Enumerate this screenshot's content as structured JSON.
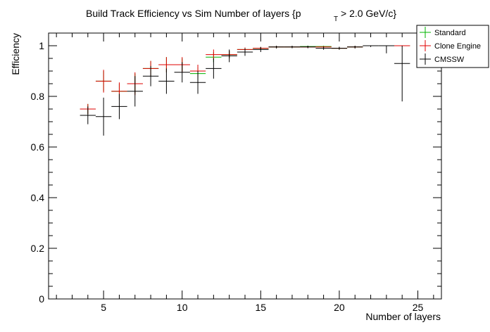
{
  "chart_data": {
    "type": "scatter",
    "title_main": "Build Track Efficiency vs Sim Number of layers {p",
    "title_sub": "T",
    "title_tail": "> 2.0 GeV/c}",
    "xlabel": "Number of layers",
    "ylabel": "Efficiency",
    "xlim": [
      1.5,
      26.5
    ],
    "ylim": [
      0,
      1.05
    ],
    "x_ticks": [
      5,
      10,
      15,
      20,
      25
    ],
    "y_ticks": [
      0,
      0.2,
      0.4,
      0.6,
      0.8,
      1
    ],
    "y_tick_labels": [
      "0",
      "0.2",
      "0.4",
      "0.6",
      "0.8",
      "1"
    ],
    "grid": false,
    "legend_position": "top-right",
    "series": [
      {
        "name": "Standard",
        "color": "#00b400",
        "points": [
          {
            "x": 4,
            "y": 0.75,
            "err": 0.02
          },
          {
            "x": 5,
            "y": 0.86,
            "err": 0.04
          },
          {
            "x": 6,
            "y": 0.82,
            "err": 0.03
          },
          {
            "x": 7,
            "y": 0.85,
            "err": 0.04
          },
          {
            "x": 8,
            "y": 0.91,
            "err": 0.03
          },
          {
            "x": 9,
            "y": 0.925,
            "err": 0.03
          },
          {
            "x": 10,
            "y": 0.925,
            "err": 0.025
          },
          {
            "x": 11,
            "y": 0.89,
            "err": 0.025
          },
          {
            "x": 12,
            "y": 0.955,
            "err": 0.02
          },
          {
            "x": 13,
            "y": 0.965,
            "err": 0.015
          },
          {
            "x": 14,
            "y": 0.985,
            "err": 0.008
          },
          {
            "x": 15,
            "y": 0.99,
            "err": 0.005
          },
          {
            "x": 16,
            "y": 0.995,
            "err": 0.004
          },
          {
            "x": 17,
            "y": 0.995,
            "err": 0.004
          },
          {
            "x": 18,
            "y": 0.997,
            "err": 0.003
          },
          {
            "x": 19,
            "y": 0.997,
            "err": 0.003
          },
          {
            "x": 20,
            "y": 0.99,
            "err": 0.004
          },
          {
            "x": 21,
            "y": 0.995,
            "err": 0.004
          },
          {
            "x": 22,
            "y": 1.0,
            "err": 0.002
          },
          {
            "x": 24,
            "y": 1.0,
            "err": 0.002
          }
        ]
      },
      {
        "name": "Clone Engine",
        "color": "#e00000",
        "points": [
          {
            "x": 4,
            "y": 0.75,
            "err": 0.02
          },
          {
            "x": 5,
            "y": 0.86,
            "err": 0.045
          },
          {
            "x": 6,
            "y": 0.82,
            "err": 0.035
          },
          {
            "x": 7,
            "y": 0.85,
            "err": 0.045
          },
          {
            "x": 8,
            "y": 0.91,
            "err": 0.03
          },
          {
            "x": 9,
            "y": 0.925,
            "err": 0.03
          },
          {
            "x": 10,
            "y": 0.925,
            "err": 0.03
          },
          {
            "x": 11,
            "y": 0.9,
            "err": 0.025
          },
          {
            "x": 12,
            "y": 0.965,
            "err": 0.02
          },
          {
            "x": 13,
            "y": 0.965,
            "err": 0.015
          },
          {
            "x": 14,
            "y": 0.985,
            "err": 0.008
          },
          {
            "x": 15,
            "y": 0.99,
            "err": 0.005
          },
          {
            "x": 16,
            "y": 0.995,
            "err": 0.004
          },
          {
            "x": 17,
            "y": 0.995,
            "err": 0.004
          },
          {
            "x": 18,
            "y": 0.995,
            "err": 0.003
          },
          {
            "x": 19,
            "y": 0.995,
            "err": 0.003
          },
          {
            "x": 20,
            "y": 0.99,
            "err": 0.004
          },
          {
            "x": 21,
            "y": 0.995,
            "err": 0.004
          },
          {
            "x": 22,
            "y": 1.0,
            "err": 0.002
          },
          {
            "x": 24,
            "y": 1.0,
            "err": 0.002
          }
        ]
      },
      {
        "name": "CMSSW",
        "color": "#000000",
        "points": [
          {
            "x": 4,
            "y": 0.725,
            "err": 0.035
          },
          {
            "x": 5,
            "y": 0.72,
            "err": 0.075
          },
          {
            "x": 6,
            "y": 0.76,
            "err": 0.05
          },
          {
            "x": 7,
            "y": 0.82,
            "err": 0.06
          },
          {
            "x": 8,
            "y": 0.88,
            "err": 0.04
          },
          {
            "x": 9,
            "y": 0.86,
            "err": 0.05
          },
          {
            "x": 10,
            "y": 0.895,
            "err": 0.04
          },
          {
            "x": 11,
            "y": 0.855,
            "err": 0.045
          },
          {
            "x": 12,
            "y": 0.91,
            "err": 0.04
          },
          {
            "x": 13,
            "y": 0.96,
            "err": 0.025
          },
          {
            "x": 14,
            "y": 0.975,
            "err": 0.015
          },
          {
            "x": 15,
            "y": 0.985,
            "err": 0.01
          },
          {
            "x": 16,
            "y": 0.995,
            "err": 0.006
          },
          {
            "x": 17,
            "y": 0.995,
            "err": 0.005
          },
          {
            "x": 18,
            "y": 0.995,
            "err": 0.005
          },
          {
            "x": 19,
            "y": 0.99,
            "err": 0.006
          },
          {
            "x": 20,
            "y": 0.99,
            "err": 0.006
          },
          {
            "x": 21,
            "y": 0.995,
            "err": 0.006
          },
          {
            "x": 22,
            "y": 1.0,
            "err": 0.005
          },
          {
            "x": 23,
            "y": 1.0,
            "err": 0.03
          },
          {
            "x": 24,
            "y": 0.93,
            "err": 0.15
          }
        ]
      }
    ]
  }
}
